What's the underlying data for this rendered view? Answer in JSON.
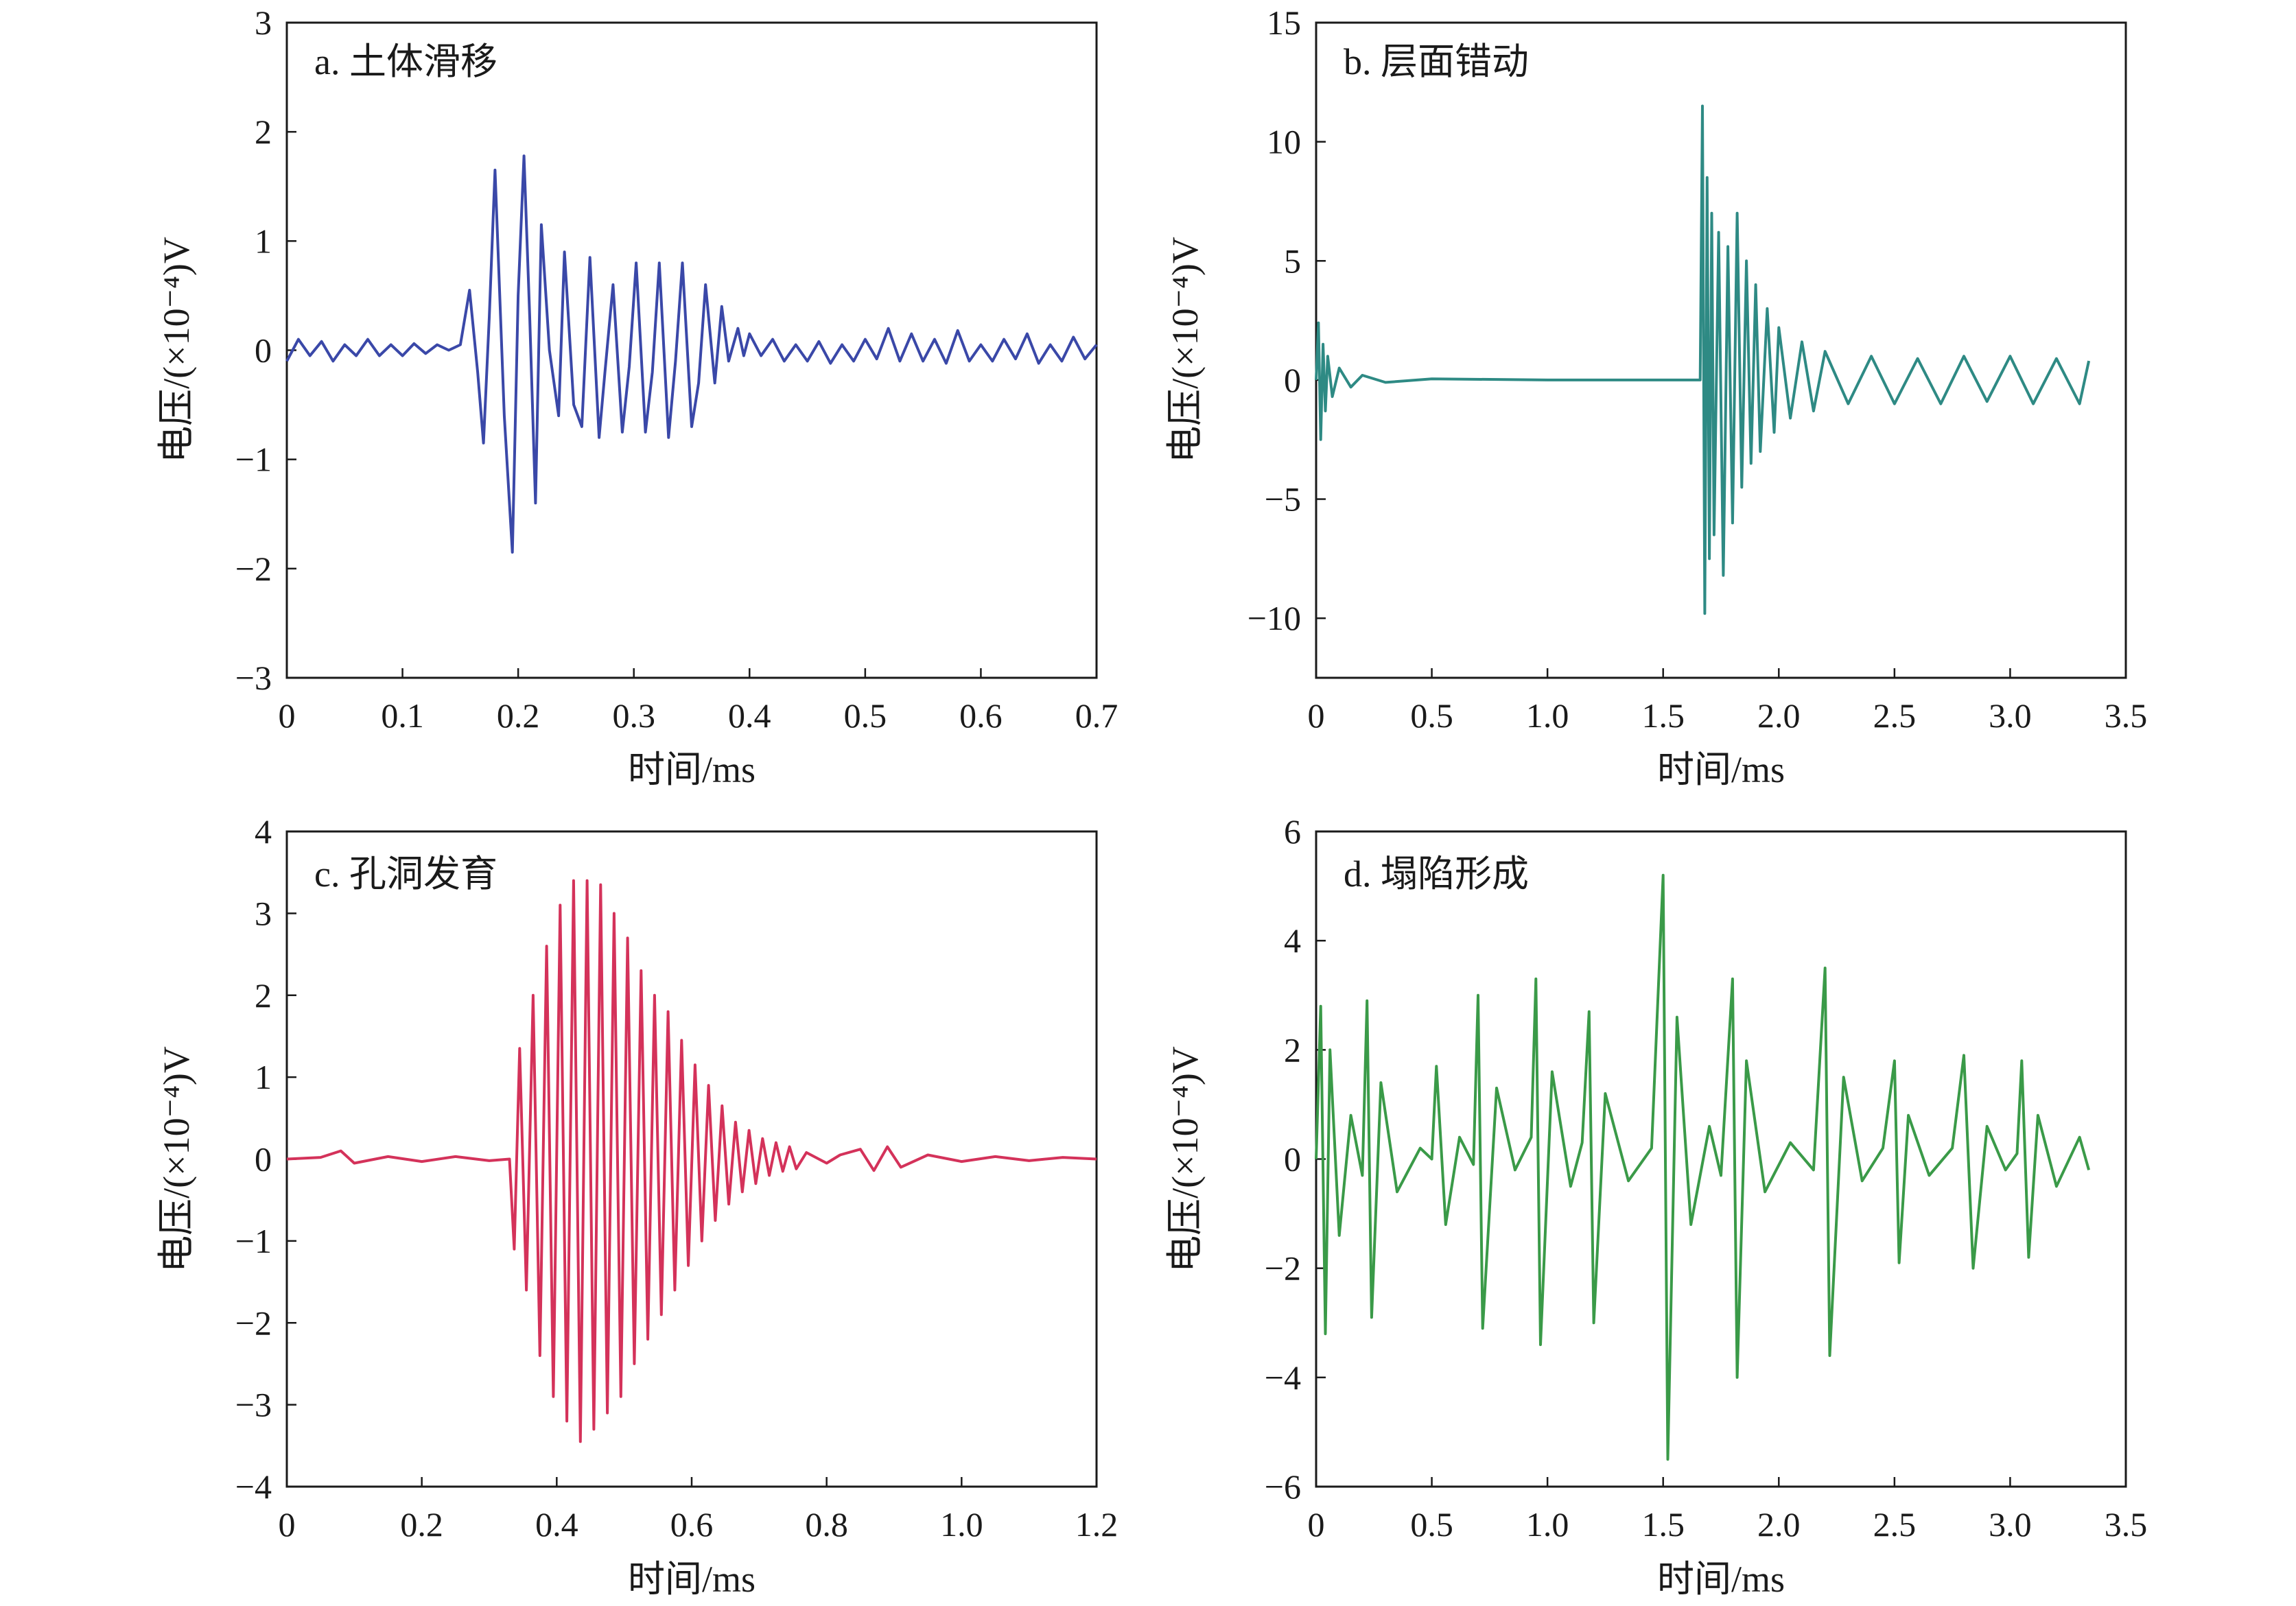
{
  "chart_data": [
    {
      "id": "a",
      "type": "line",
      "panel_label": "a. 土体滑移",
      "xlabel": "时间/ms",
      "ylabel": "电压/(×10⁻⁴)V",
      "xlim": [
        0,
        0.7
      ],
      "ylim": [
        -3,
        3
      ],
      "xticks": [
        0,
        0.1,
        0.2,
        0.3,
        0.4,
        0.5,
        0.6,
        0.7
      ],
      "xtick_labels": [
        "0",
        "0.1",
        "0.2",
        "0.3",
        "0.4",
        "0.5",
        "0.6",
        "0.7"
      ],
      "yticks": [
        -3,
        -2,
        -1,
        0,
        1,
        2,
        3
      ],
      "ytick_labels": [
        "−3",
        "−2",
        "−1",
        "0",
        "1",
        "2",
        "3"
      ],
      "grid": false,
      "series": [
        {
          "color": "#3a48a8",
          "x": [
            0,
            0.01,
            0.02,
            0.03,
            0.04,
            0.05,
            0.06,
            0.07,
            0.08,
            0.09,
            0.1,
            0.11,
            0.12,
            0.13,
            0.14,
            0.15,
            0.158,
            0.165,
            0.17,
            0.175,
            0.18,
            0.188,
            0.195,
            0.2,
            0.205,
            0.21,
            0.215,
            0.22,
            0.227,
            0.235,
            0.24,
            0.248,
            0.255,
            0.262,
            0.27,
            0.275,
            0.282,
            0.29,
            0.296,
            0.302,
            0.31,
            0.316,
            0.322,
            0.33,
            0.336,
            0.342,
            0.35,
            0.356,
            0.362,
            0.37,
            0.376,
            0.382,
            0.39,
            0.395,
            0.4,
            0.41,
            0.42,
            0.43,
            0.44,
            0.45,
            0.46,
            0.47,
            0.48,
            0.49,
            0.5,
            0.51,
            0.52,
            0.53,
            0.54,
            0.55,
            0.56,
            0.57,
            0.58,
            0.59,
            0.6,
            0.61,
            0.62,
            0.63,
            0.64,
            0.65,
            0.66,
            0.67,
            0.68,
            0.69,
            0.7
          ],
          "y": [
            -0.1,
            0.1,
            -0.05,
            0.08,
            -0.1,
            0.05,
            -0.05,
            0.1,
            -0.05,
            0.05,
            -0.05,
            0.06,
            -0.03,
            0.05,
            0,
            0.05,
            0.55,
            -0.2,
            -0.85,
            0.3,
            1.65,
            -0.6,
            -1.85,
            0.5,
            1.78,
            0.3,
            -1.4,
            1.15,
            0,
            -0.6,
            0.9,
            -0.5,
            -0.7,
            0.85,
            -0.8,
            -0.2,
            0.6,
            -0.75,
            -0.15,
            0.8,
            -0.75,
            -0.2,
            0.8,
            -0.8,
            -0.1,
            0.8,
            -0.7,
            -0.3,
            0.6,
            -0.3,
            0.4,
            -0.1,
            0.2,
            -0.05,
            0.15,
            -0.05,
            0.1,
            -0.1,
            0.05,
            -0.1,
            0.08,
            -0.12,
            0.05,
            -0.1,
            0.1,
            -0.08,
            0.2,
            -0.1,
            0.15,
            -0.1,
            0.1,
            -0.12,
            0.18,
            -0.1,
            0.05,
            -0.1,
            0.1,
            -0.08,
            0.15,
            -0.12,
            0.05,
            -0.1,
            0.12,
            -0.08,
            0.05
          ]
        }
      ]
    },
    {
      "id": "b",
      "type": "line",
      "panel_label": "b. 层面错动",
      "xlabel": "时间/ms",
      "ylabel": "电压/(×10⁻⁴)V",
      "xlim": [
        0,
        3.5
      ],
      "ylim": [
        -12.5,
        15
      ],
      "xticks": [
        0,
        0.5,
        1.0,
        1.5,
        2.0,
        2.5,
        3.0,
        3.5
      ],
      "xtick_labels": [
        "0",
        "0.5",
        "1.0",
        "1.5",
        "2.0",
        "2.5",
        "3.0",
        "3.5"
      ],
      "yticks": [
        -10,
        -5,
        0,
        5,
        10,
        15
      ],
      "ytick_labels": [
        "−10",
        "−5",
        "0",
        "5",
        "10",
        "15"
      ],
      "grid": false,
      "series": [
        {
          "color": "#2e8a84",
          "x": [
            0,
            0.01,
            0.02,
            0.03,
            0.04,
            0.05,
            0.07,
            0.1,
            0.15,
            0.2,
            0.3,
            0.5,
            1.0,
            1.5,
            1.66,
            1.67,
            1.68,
            1.69,
            1.7,
            1.71,
            1.72,
            1.74,
            1.76,
            1.78,
            1.8,
            1.82,
            1.84,
            1.86,
            1.88,
            1.9,
            1.92,
            1.95,
            1.98,
            2.0,
            2.05,
            2.1,
            2.15,
            2.2,
            2.3,
            2.4,
            2.5,
            2.6,
            2.7,
            2.8,
            2.9,
            3.0,
            3.1,
            3.2,
            3.3,
            3.34
          ],
          "y": [
            0,
            2.4,
            -2.5,
            1.5,
            -1.3,
            1.0,
            -0.7,
            0.5,
            -0.3,
            0.2,
            -0.1,
            0.05,
            0,
            0,
            0,
            11.5,
            -9.8,
            8.5,
            -7.5,
            7.0,
            -6.5,
            6.2,
            -8.2,
            5.6,
            -6.0,
            7.0,
            -4.5,
            5.0,
            -3.5,
            4.0,
            -3.0,
            3.0,
            -2.2,
            2.2,
            -1.6,
            1.6,
            -1.3,
            1.2,
            -1.0,
            1.0,
            -1.0,
            0.9,
            -1.0,
            1.0,
            -0.9,
            1.0,
            -1.0,
            0.9,
            -1.0,
            0.8
          ]
        }
      ]
    },
    {
      "id": "c",
      "type": "line",
      "panel_label": "c. 孔洞发育",
      "xlabel": "时间/ms",
      "ylabel": "电压/(×10⁻⁴)V",
      "xlim": [
        0,
        1.2
      ],
      "ylim": [
        -4,
        4
      ],
      "xticks": [
        0,
        0.2,
        0.4,
        0.6,
        0.8,
        1.0,
        1.2
      ],
      "xtick_labels": [
        "0",
        "0.2",
        "0.4",
        "0.6",
        "0.8",
        "1.0",
        "1.2"
      ],
      "yticks": [
        -4,
        -3,
        -2,
        -1,
        0,
        1,
        2,
        3,
        4
      ],
      "ytick_labels": [
        "−4",
        "−3",
        "−2",
        "−1",
        "0",
        "1",
        "2",
        "3",
        "4"
      ],
      "grid": false,
      "series": [
        {
          "color": "#d4325a",
          "x": [
            0,
            0.05,
            0.08,
            0.1,
            0.15,
            0.2,
            0.25,
            0.3,
            0.33,
            0.337,
            0.345,
            0.355,
            0.365,
            0.375,
            0.385,
            0.395,
            0.405,
            0.415,
            0.425,
            0.435,
            0.445,
            0.455,
            0.465,
            0.475,
            0.485,
            0.495,
            0.505,
            0.515,
            0.525,
            0.535,
            0.545,
            0.555,
            0.565,
            0.575,
            0.585,
            0.595,
            0.605,
            0.615,
            0.625,
            0.635,
            0.645,
            0.655,
            0.665,
            0.675,
            0.685,
            0.695,
            0.705,
            0.715,
            0.725,
            0.735,
            0.745,
            0.755,
            0.77,
            0.8,
            0.82,
            0.85,
            0.87,
            0.89,
            0.91,
            0.95,
            1.0,
            1.05,
            1.1,
            1.15,
            1.2
          ],
          "y": [
            0,
            0.02,
            0.1,
            -0.05,
            0.03,
            -0.03,
            0.03,
            -0.02,
            0,
            -1.1,
            1.35,
            -1.6,
            2.0,
            -2.4,
            2.6,
            -2.9,
            3.1,
            -3.2,
            3.4,
            -3.45,
            3.4,
            -3.3,
            3.35,
            -3.1,
            3.0,
            -2.9,
            2.7,
            -2.5,
            2.3,
            -2.2,
            2.0,
            -1.9,
            1.8,
            -1.6,
            1.45,
            -1.3,
            1.15,
            -1.0,
            0.9,
            -0.75,
            0.65,
            -0.55,
            0.45,
            -0.4,
            0.35,
            -0.3,
            0.25,
            -0.2,
            0.2,
            -0.15,
            0.15,
            -0.12,
            0.08,
            -0.05,
            0.05,
            0.12,
            -0.14,
            0.15,
            -0.1,
            0.05,
            -0.03,
            0.03,
            -0.02,
            0.02,
            0
          ]
        }
      ]
    },
    {
      "id": "d",
      "type": "line",
      "panel_label": "d. 塌陷形成",
      "xlabel": "时间/ms",
      "ylabel": "电压/(×10⁻⁴)V",
      "xlim": [
        0,
        3.5
      ],
      "ylim": [
        -6,
        6
      ],
      "xticks": [
        0,
        0.5,
        1.0,
        1.5,
        2.0,
        2.5,
        3.0,
        3.5
      ],
      "xtick_labels": [
        "0",
        "0.5",
        "1.0",
        "1.5",
        "2.0",
        "2.5",
        "3.0",
        "3.5"
      ],
      "yticks": [
        -6,
        -4,
        -2,
        0,
        2,
        4,
        6
      ],
      "ytick_labels": [
        "−6",
        "−4",
        "−2",
        "0",
        "2",
        "4",
        "6"
      ],
      "grid": false,
      "series": [
        {
          "color": "#3a9a48",
          "x": [
            0,
            0.02,
            0.04,
            0.06,
            0.1,
            0.15,
            0.2,
            0.22,
            0.24,
            0.28,
            0.35,
            0.45,
            0.5,
            0.52,
            0.56,
            0.62,
            0.68,
            0.7,
            0.72,
            0.78,
            0.86,
            0.93,
            0.95,
            0.97,
            1.02,
            1.1,
            1.15,
            1.18,
            1.2,
            1.25,
            1.35,
            1.45,
            1.5,
            1.52,
            1.56,
            1.62,
            1.7,
            1.75,
            1.8,
            1.82,
            1.86,
            1.94,
            2.05,
            2.15,
            2.2,
            2.22,
            2.28,
            2.36,
            2.45,
            2.5,
            2.52,
            2.56,
            2.65,
            2.75,
            2.8,
            2.84,
            2.9,
            2.98,
            3.03,
            3.05,
            3.08,
            3.12,
            3.2,
            3.3,
            3.34
          ],
          "y": [
            0,
            2.8,
            -3.2,
            2.0,
            -1.4,
            0.8,
            -0.3,
            2.9,
            -2.9,
            1.4,
            -0.6,
            0.2,
            0,
            1.7,
            -1.2,
            0.4,
            -0.1,
            3.0,
            -3.1,
            1.3,
            -0.2,
            0.4,
            3.3,
            -3.4,
            1.6,
            -0.5,
            0.3,
            2.7,
            -3.0,
            1.2,
            -0.4,
            0.2,
            5.2,
            -5.5,
            2.6,
            -1.2,
            0.6,
            -0.3,
            3.3,
            -4.0,
            1.8,
            -0.6,
            0.3,
            -0.2,
            3.5,
            -3.6,
            1.5,
            -0.4,
            0.2,
            1.8,
            -1.9,
            0.8,
            -0.3,
            0.2,
            1.9,
            -2.0,
            0.6,
            -0.2,
            0.1,
            1.8,
            -1.8,
            0.8,
            -0.5,
            0.4,
            -0.2
          ]
        }
      ]
    }
  ]
}
